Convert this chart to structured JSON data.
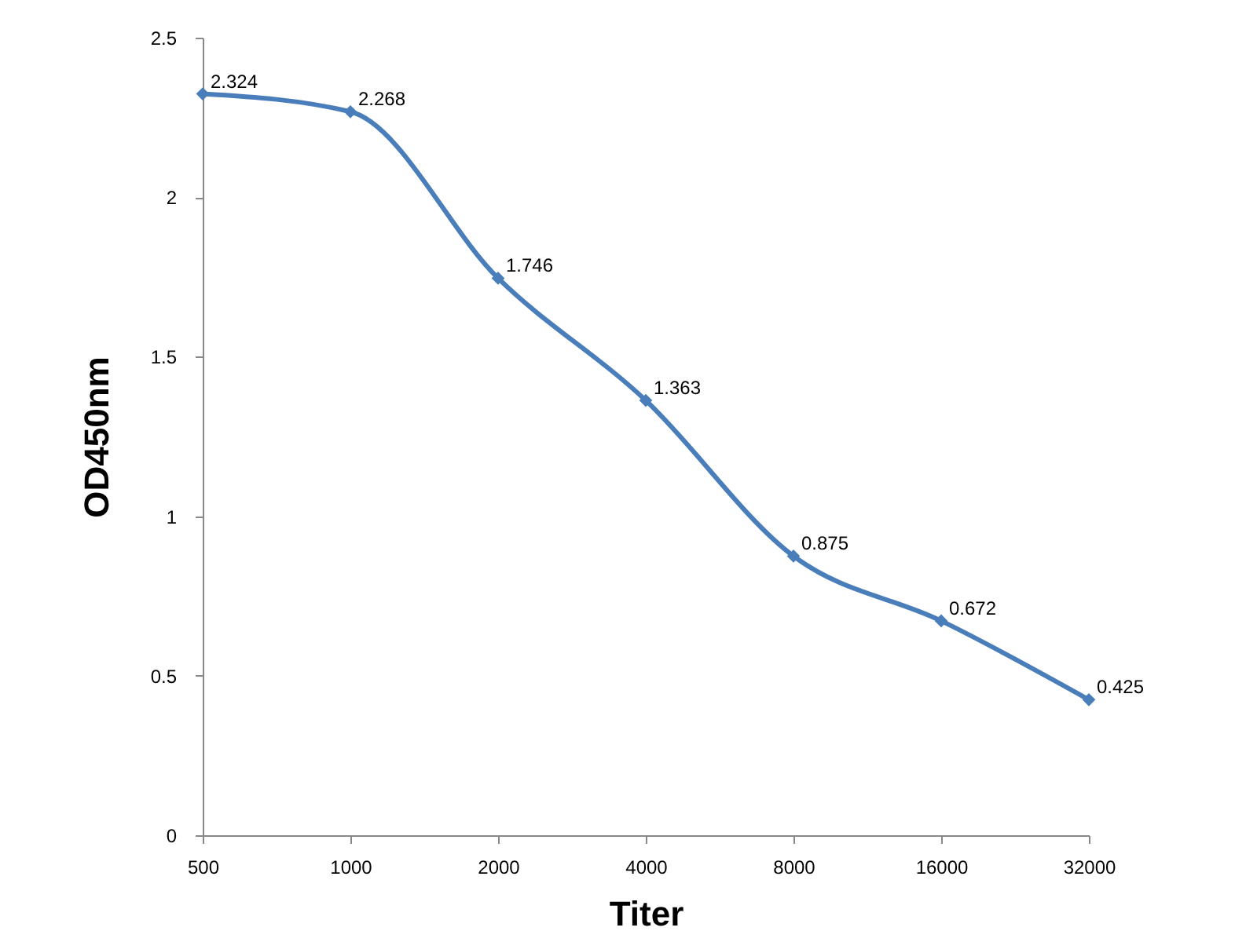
{
  "chart_data": {
    "type": "line",
    "xlabel": "Titer",
    "ylabel": "OD450nm",
    "categories": [
      "500",
      "1000",
      "2000",
      "4000",
      "8000",
      "16000",
      "32000"
    ],
    "series": [
      {
        "color": "#4a7ebb",
        "values": [
          2.324,
          2.268,
          1.746,
          1.363,
          0.875,
          0.672,
          0.425
        ]
      }
    ],
    "ylim": [
      0,
      2.5
    ],
    "yticks": [
      0,
      0.5,
      1,
      1.5,
      2,
      2.5
    ],
    "grid": false,
    "legend": false,
    "marker": "diamond",
    "line_style": "solid",
    "data_labels": true
  }
}
